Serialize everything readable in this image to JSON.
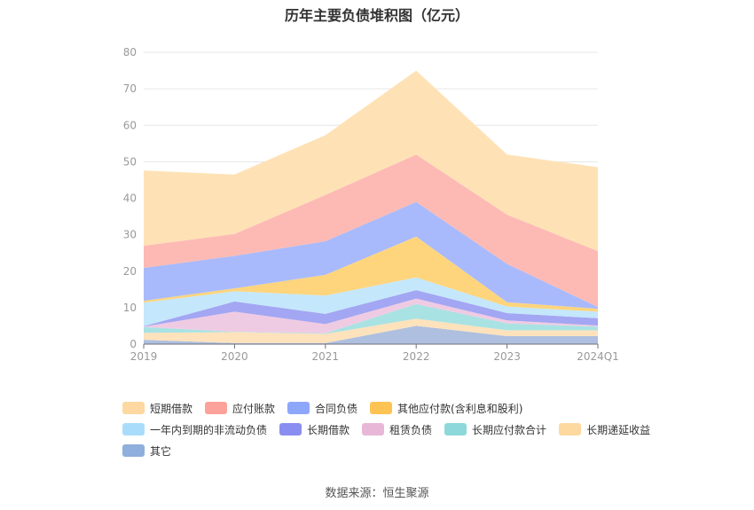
{
  "title": "历年主要负债堆积图（亿元）",
  "source": "数据来源：恒生聚源",
  "chart_data": {
    "type": "area",
    "stacked": true,
    "title": "历年主要负债堆积图（亿元）",
    "categories": [
      "2019",
      "2020",
      "2021",
      "2022",
      "2023",
      "2024Q1"
    ],
    "y_ticks": [
      "0",
      "10",
      "20",
      "30",
      "40",
      "50",
      "60",
      "70",
      "80"
    ],
    "ylim": [
      0,
      80
    ],
    "grid": true,
    "legend_position": "bottom",
    "series": [
      {
        "name": "其它",
        "color": "#aebfdf",
        "legend_color": "#8fafdc",
        "values": [
          1.2,
          0.3,
          0.3,
          5.0,
          2.2,
          2.2
        ]
      },
      {
        "name": "长期递延收益",
        "color": "#fde2bc",
        "legend_color": "#fdd9a0",
        "values": [
          1.9,
          3.0,
          2.5,
          2.0,
          1.6,
          1.6
        ]
      },
      {
        "name": "长期应付款合计",
        "color": "#a9e2e3",
        "legend_color": "#8dd8da",
        "values": [
          1.6,
          0.1,
          0.2,
          4.0,
          1.9,
          1.0
        ]
      },
      {
        "name": "租赁负债",
        "color": "#efcbe3",
        "legend_color": "#e8b7d8",
        "values": [
          0.1,
          5.5,
          2.5,
          1.5,
          0.8,
          0.3
        ]
      },
      {
        "name": "长期借款",
        "color": "#a3a6f2",
        "legend_color": "#8a8ef0",
        "values": [
          0.1,
          2.8,
          2.8,
          2.3,
          2.0,
          2.0
        ]
      },
      {
        "name": "一年内到期的非流动负债",
        "color": "#c4e7fb",
        "legend_color": "#a9dcfa",
        "values": [
          6.5,
          2.8,
          5.0,
          3.5,
          1.8,
          1.8
        ]
      },
      {
        "name": "其他应付款(含利息和股利)",
        "color": "#fed57d",
        "legend_color": "#fdc454",
        "values": [
          0.5,
          0.8,
          5.7,
          11.2,
          1.2,
          0.8
        ]
      },
      {
        "name": "合同负债",
        "color": "#a9bafc",
        "legend_color": "#8ea7fb",
        "values": [
          9.0,
          8.9,
          9.2,
          9.5,
          10.5,
          0.5
        ]
      },
      {
        "name": "应付账款",
        "color": "#fdbab4",
        "legend_color": "#fca29a",
        "values": [
          6.1,
          6.0,
          12.7,
          13.0,
          13.5,
          15.3
        ]
      },
      {
        "name": "短期借款",
        "color": "#fee2b6",
        "legend_color": "#fdd8a0",
        "values": [
          20.6,
          16.3,
          16.4,
          23.0,
          16.5,
          23.0
        ]
      }
    ],
    "legend_order": [
      "短期借款",
      "应付账款",
      "合同负债",
      "其他应付款(含利息和股利)",
      "一年内到期的非流动负债",
      "长期借款",
      "租赁负债",
      "长期应付款合计",
      "长期递延收益",
      "其它"
    ]
  }
}
